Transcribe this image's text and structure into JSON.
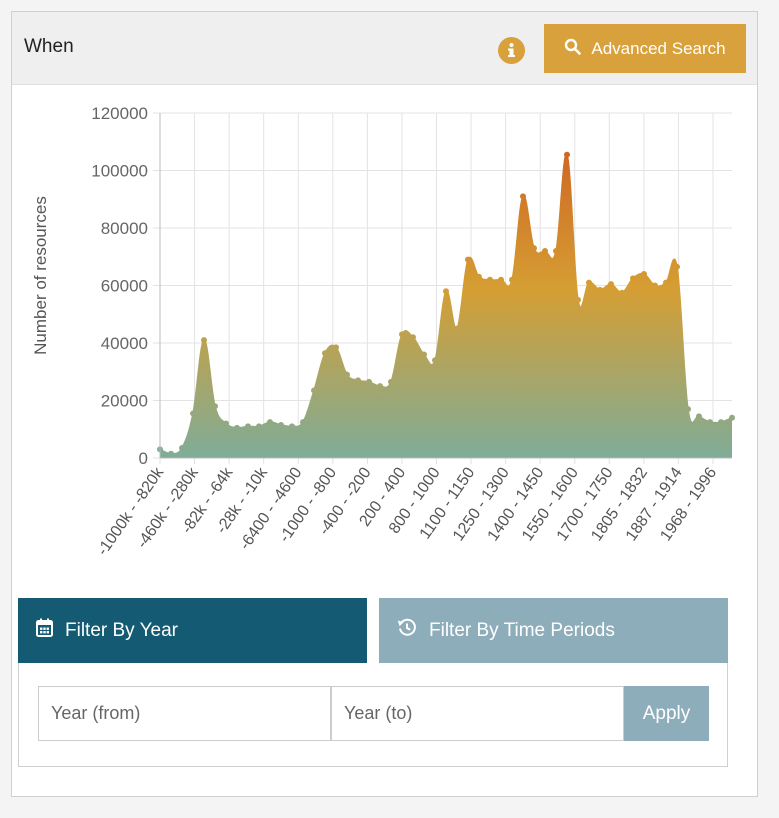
{
  "header": {
    "title": "When",
    "info_icon": "info-icon",
    "advanced_search_label": "Advanced Search",
    "advanced_search_icon": "search-icon"
  },
  "colors": {
    "accent": "#d9a13b",
    "tab_active": "#145a72",
    "tab_inactive": "#8eadba",
    "area_bottom": "#7fac98",
    "area_mid": "#d59e33",
    "area_top": "#cf6622"
  },
  "chart_data": {
    "type": "area",
    "title": "",
    "xlabel": "",
    "ylabel": "Number of resources",
    "ylim": [
      0,
      120000
    ],
    "yticks": [
      0,
      20000,
      40000,
      60000,
      80000,
      100000,
      120000
    ],
    "xtick_labels": [
      "-1000k - -820k",
      "-460k - -280k",
      "-82k - -64k",
      "-28k - -10k",
      "-6400 - -4600",
      "-1000 - -800",
      "-400 - -200",
      "200 - 400",
      "800 - 1000",
      "1100 - 1150",
      "1250 - 1300",
      "1400 - 1450",
      "1550 - 1600",
      "1700 - 1750",
      "1805 - 1832",
      "1887 - 1914",
      "1968 - 1996"
    ],
    "grid": true,
    "values": [
      3000,
      1500,
      3500,
      15500,
      41000,
      18000,
      12000,
      10500,
      11000,
      11000,
      12500,
      11500,
      11000,
      12500,
      23500,
      36500,
      38500,
      29000,
      27000,
      26500,
      25000,
      26500,
      43000,
      42000,
      36000,
      34000,
      58000,
      45000,
      69000,
      63000,
      62000,
      62000,
      62000,
      91000,
      73000,
      72000,
      72000,
      105500,
      55000,
      61000,
      58500,
      60500,
      57500,
      62500,
      64000,
      60000,
      61000,
      66500,
      17000,
      14500,
      12500,
      12500,
      14000
    ]
  },
  "tabs": {
    "year_label": "Filter By Year",
    "year_icon": "calendar-icon",
    "periods_label": "Filter By Time Periods",
    "periods_icon": "history-icon"
  },
  "filter": {
    "from_placeholder": "Year (from)",
    "to_placeholder": "Year (to)",
    "from_value": "",
    "to_value": "",
    "apply_label": "Apply"
  }
}
